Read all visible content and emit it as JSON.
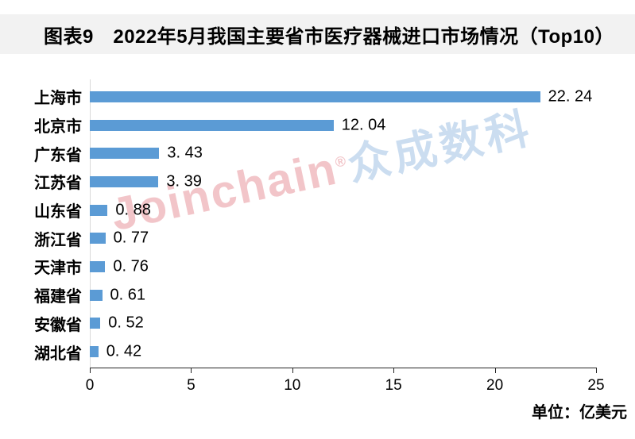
{
  "colors": {
    "bar": "#5B9BD5",
    "title_band_bg": "#F2F2F2",
    "axis_line": "#262626",
    "gridline": "#D9D9D9",
    "text": "#000000",
    "watermark_latin": "#F2C5C9",
    "watermark_cjk": "#CBDDF0"
  },
  "watermark": {
    "latin": "Joinchain",
    "reg": "®",
    "cjk": "众成数科"
  },
  "footer": {
    "unit_label": "单位：亿美元"
  },
  "chart_data": {
    "type": "bar",
    "orientation": "horizontal",
    "title": "图表9　2022年5月我国主要省市医疗器械进口市场情况（Top10）",
    "categories": [
      "上海市",
      "北京市",
      "广东省",
      "江苏省",
      "山东省",
      "浙江省",
      "天津市",
      "福建省",
      "安徽省",
      "湖北省"
    ],
    "values": [
      22.24,
      12.04,
      3.43,
      3.39,
      0.88,
      0.77,
      0.76,
      0.61,
      0.52,
      0.42
    ],
    "xlabel": "",
    "ylabel": "",
    "xlim": [
      0,
      25
    ],
    "x_ticks": [
      0,
      5,
      10,
      15,
      20,
      25
    ],
    "unit": "亿美元",
    "grid": false,
    "value_labels": true,
    "legend": "none"
  }
}
